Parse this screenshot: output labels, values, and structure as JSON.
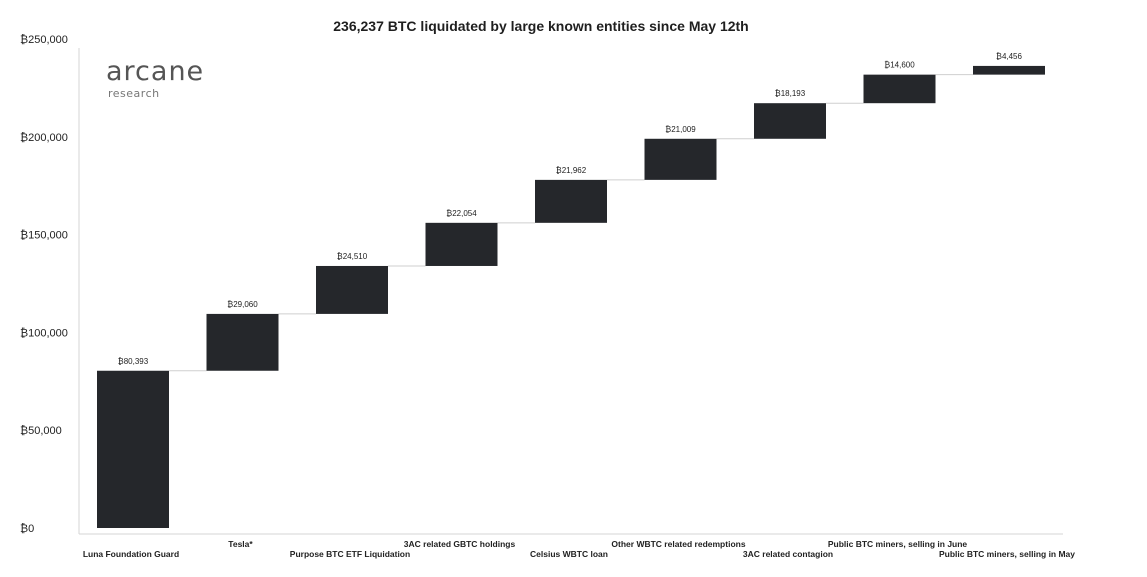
{
  "logo": {
    "name": "arcane",
    "tagline": "research"
  },
  "chart_data": {
    "type": "waterfall",
    "title": "236,237 BTC liquidated by large known entities since May 12th",
    "xlabel": "",
    "ylabel": "",
    "ylim": [
      0,
      250000
    ],
    "yticks": [
      0,
      50000,
      100000,
      150000,
      200000,
      250000
    ],
    "ytick_labels": [
      "₿0",
      "₿50,000",
      "₿100,000",
      "₿150,000",
      "₿200,000",
      "₿250,000"
    ],
    "categories": [
      "Luna Foundation Guard",
      "Tesla*",
      "Purpose BTC ETF Liquidation",
      "3AC related GBTC holdings",
      "Celsius WBTC loan",
      "Other WBTC related redemptions",
      "3AC related contagion",
      "Public BTC miners, selling in June",
      "Public BTC miners, selling in May"
    ],
    "values": [
      80393,
      29060,
      24510,
      22054,
      21962,
      21009,
      18193,
      14600,
      4456
    ],
    "value_labels": [
      "₿80,393",
      "₿29,060",
      "₿24,510",
      "₿22,054",
      "₿21,962",
      "₿21,009",
      "₿18,193",
      "₿14,600",
      "₿4,456"
    ],
    "grid": false,
    "bar_color": "#25272b",
    "connector_color": "#cfcfcf"
  }
}
